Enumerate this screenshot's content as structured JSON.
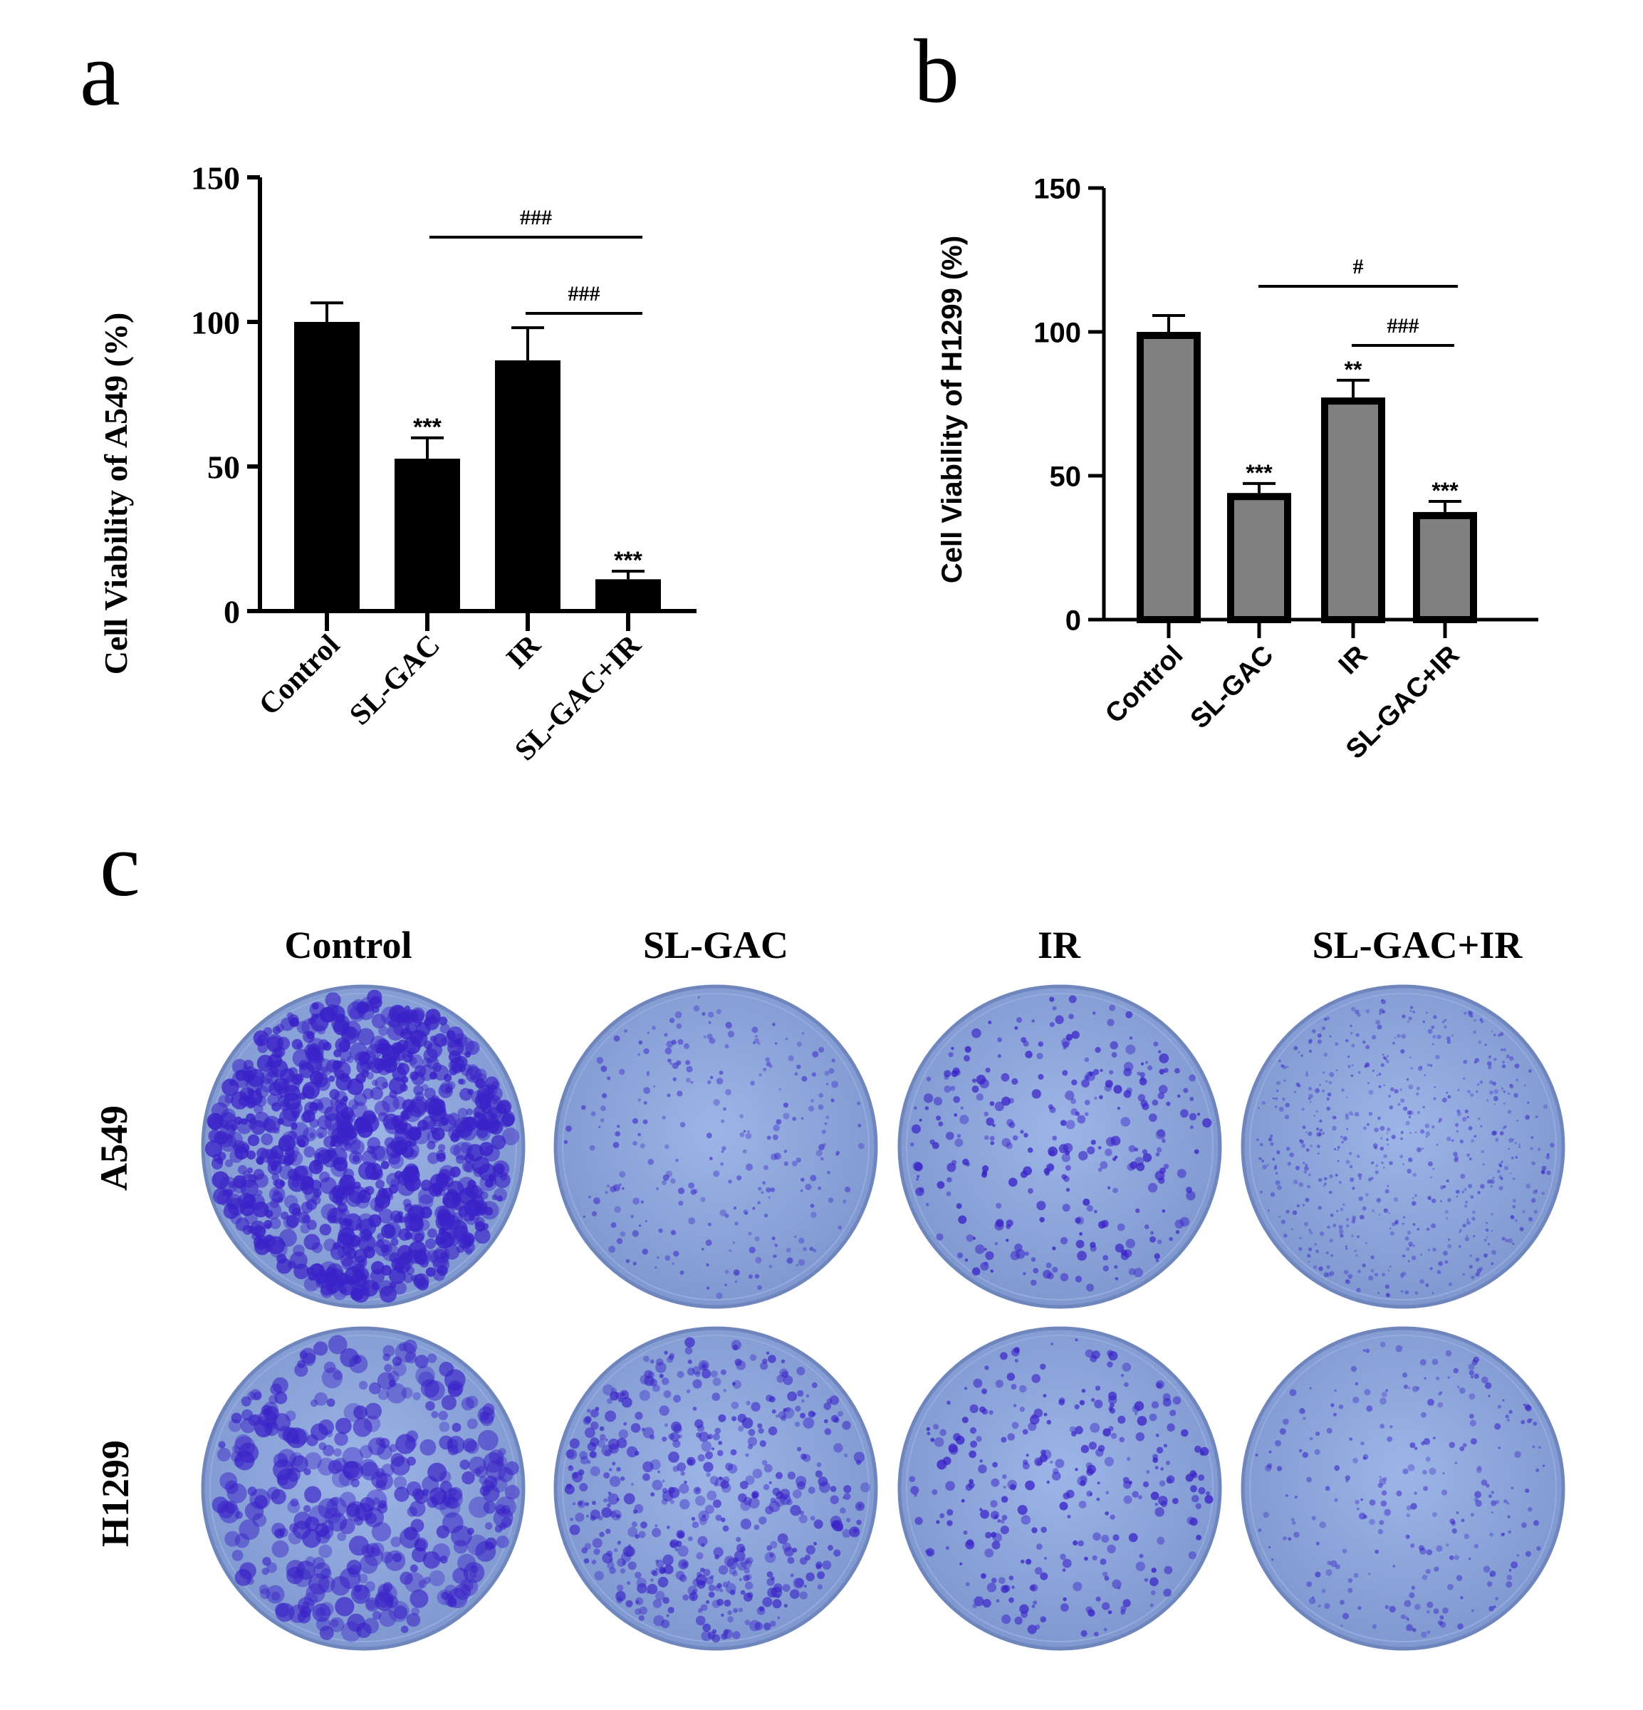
{
  "figure": {
    "panel_labels": {
      "a": "a",
      "b": "b",
      "c": "c"
    },
    "panel_c": {
      "column_headers": [
        "Control",
        "SL-GAC",
        "IR",
        "SL-GAC+IR"
      ],
      "row_labels": [
        "A549",
        "H1299"
      ],
      "plate_colors": {
        "background": "#8fa9dc",
        "rim": "#6f86bd",
        "colony": "#3a22c8"
      },
      "colony_density": {
        "A549": [
          "very-high",
          "low",
          "medium",
          "low-fine"
        ],
        "H1299": [
          "high",
          "medium-high",
          "medium",
          "low"
        ]
      }
    }
  },
  "chart_data": [
    {
      "panel": "a",
      "type": "bar",
      "title": "",
      "xlabel": "",
      "ylabel": "Cell Viability of A549 (%)",
      "categories": [
        "Control",
        "SL-GAC",
        "IR",
        "SL-GAC+IR"
      ],
      "values": [
        100,
        52.7,
        86.7,
        11
      ],
      "error_upper": [
        106.6,
        59.9,
        98,
        13.8
      ],
      "ylim": [
        0,
        150
      ],
      "yticks": [
        "0",
        "50",
        "100",
        "150"
      ],
      "bar_color": "#000000",
      "grid": false,
      "significance_vs_control": [
        "",
        "***",
        "",
        "***"
      ],
      "comparison_brackets": [
        {
          "from": "SL-GAC",
          "to": "SL-GAC+IR",
          "label": "###"
        },
        {
          "from": "IR",
          "to": "SL-GAC+IR",
          "label": "###"
        }
      ]
    },
    {
      "panel": "b",
      "type": "bar",
      "title": "",
      "xlabel": "",
      "ylabel": "Cell Viability of H1299 (%)",
      "categories": [
        "Control",
        "SL-GAC",
        "IR",
        "SL-GAC+IR"
      ],
      "values": [
        100,
        44,
        77.2,
        37.4
      ],
      "error_upper": [
        105.7,
        47.3,
        83.2,
        41.1
      ],
      "ylim": [
        0,
        150
      ],
      "yticks": [
        "0",
        "50",
        "100",
        "150"
      ],
      "bar_color": "#808080",
      "bar_edge": "#000000",
      "grid": false,
      "significance_vs_control": [
        "",
        "***",
        "**",
        "***"
      ],
      "comparison_brackets": [
        {
          "from": "SL-GAC",
          "to": "SL-GAC+IR",
          "label": "#"
        },
        {
          "from": "IR",
          "to": "SL-GAC+IR",
          "label": "###"
        }
      ]
    }
  ]
}
